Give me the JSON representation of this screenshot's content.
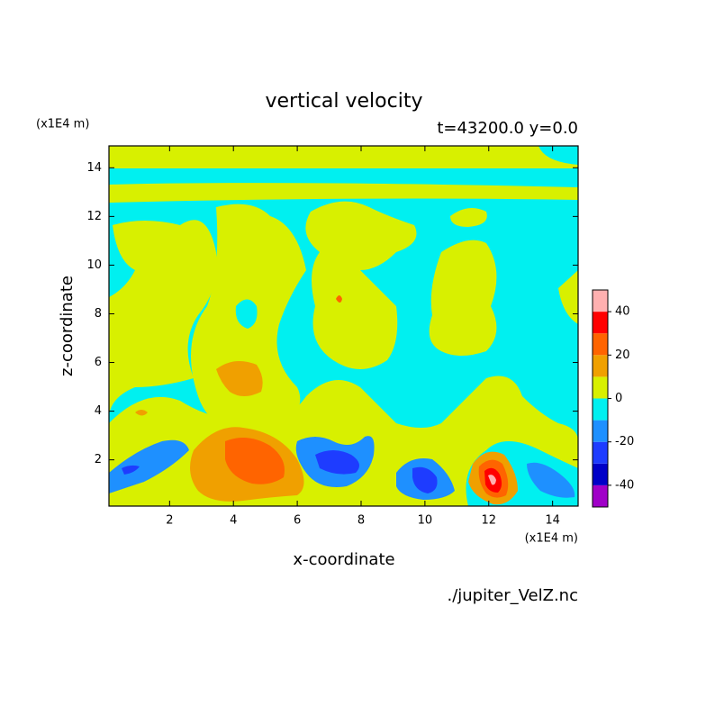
{
  "chart_data": {
    "type": "contour",
    "title": "vertical velocity",
    "subtitle": "t=43200.0  y=0.0",
    "x_label": "x-coordinate",
    "y_label": "z-coordinate",
    "x_unit": "(x1E4 m)",
    "y_unit": "(x1E4 m)",
    "footnote": "./jupiter_VelZ.nc",
    "xlim": [
      0.1,
      14.8
    ],
    "ylim": [
      0.1,
      14.9
    ],
    "xticks": [
      2,
      4,
      6,
      8,
      10,
      12,
      14
    ],
    "yticks": [
      2,
      4,
      6,
      8,
      10,
      12,
      14
    ],
    "levels": [
      -50,
      -40,
      -30,
      -20,
      -10,
      0,
      10,
      20,
      30,
      40,
      50
    ],
    "colors": [
      "#a000c8",
      "#0000c8",
      "#1e3cff",
      "#1e90ff",
      "#00f0f0",
      "#d8f000",
      "#f0a000",
      "#ff6400",
      "#ff0000",
      "#ffb0b0"
    ],
    "colorbar_ticks": [
      -40,
      -20,
      0,
      20,
      40
    ]
  }
}
